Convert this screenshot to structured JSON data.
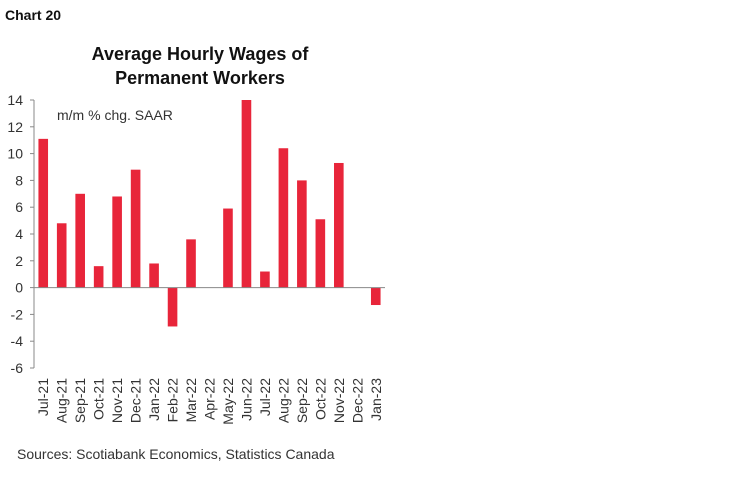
{
  "header": {
    "chart_label": "Chart 20",
    "title_line1": "Average Hourly Wages of",
    "title_line2": "Permanent Workers"
  },
  "footer": {
    "source": "Sources: Scotiabank Economics, Statistics Canada"
  },
  "chart_data": {
    "type": "bar",
    "title": "Average Hourly Wages of Permanent Workers",
    "annotation": "m/m % chg. SAAR",
    "categories": [
      "Jul-21",
      "Aug-21",
      "Sep-21",
      "Oct-21",
      "Nov-21",
      "Dec-21",
      "Jan-22",
      "Feb-22",
      "Mar-22",
      "Apr-22",
      "May-22",
      "Jun-22",
      "Jul-22",
      "Aug-22",
      "Sep-22",
      "Oct-22",
      "Nov-22",
      "Dec-22",
      "Jan-23"
    ],
    "values": [
      11.1,
      4.8,
      7.0,
      1.6,
      6.8,
      8.8,
      1.8,
      -2.9,
      3.6,
      0,
      5.9,
      14.0,
      1.2,
      10.4,
      8.0,
      5.1,
      9.3,
      0,
      -1.3
    ],
    "yticks": [
      14,
      12,
      10,
      8,
      6,
      4,
      2,
      0,
      -2,
      -4,
      -6
    ],
    "ylim": [
      -6,
      14
    ],
    "bar_color": "#e8253a",
    "grid": false
  }
}
